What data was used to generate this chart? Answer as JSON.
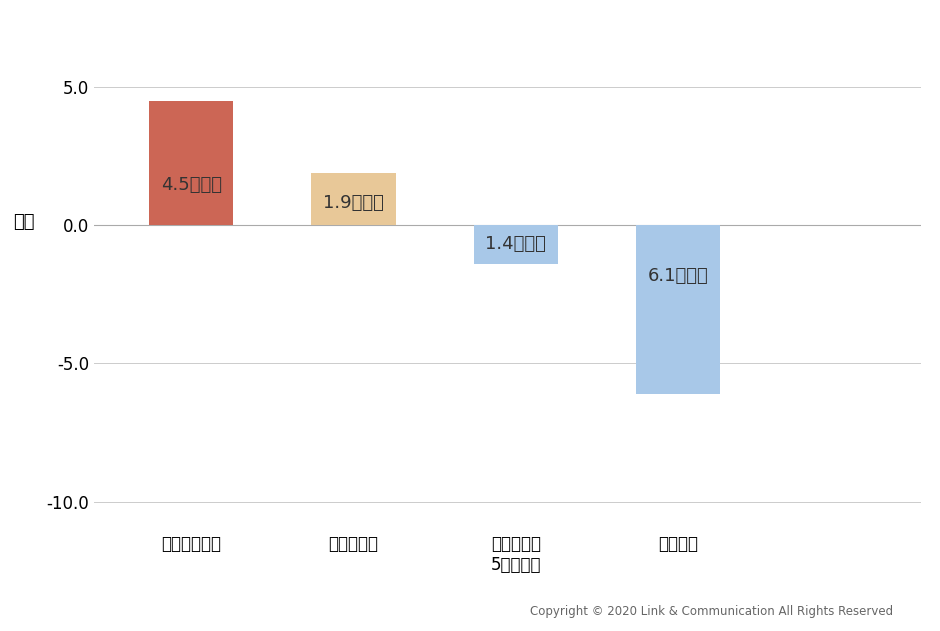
{
  "categories": [
    "紧急事態宣言",
    "在宅ワーク",
    "子育て時間\n5時間増加",
    "うつ傾向"
  ],
  "values": [
    4.5,
    1.9,
    -1.4,
    -6.1
  ],
  "bar_colors": [
    "#CC6655",
    "#E8C898",
    "#A8C8E8",
    "#A8C8E8"
  ],
  "bar_labels": [
    "4.5回増加",
    "1.9回増加",
    "1.4回減少",
    "6.1回減少"
  ],
  "ylabel": "回数",
  "ylim": [
    -10.8,
    7.0
  ],
  "yticks": [
    -10.0,
    -5.0,
    0.0,
    5.0
  ],
  "ytick_labels": [
    "-10.0",
    "-5.0",
    "0.0",
    "5.0"
  ],
  "copyright": "Copyright © 2020 Link & Communication All Rights Reserved",
  "background_color": "#ffffff",
  "bar_width": 0.52,
  "label_fontsize": 13,
  "tick_fontsize": 12,
  "ylabel_fontsize": 13,
  "xlabel_fontsize": 12
}
